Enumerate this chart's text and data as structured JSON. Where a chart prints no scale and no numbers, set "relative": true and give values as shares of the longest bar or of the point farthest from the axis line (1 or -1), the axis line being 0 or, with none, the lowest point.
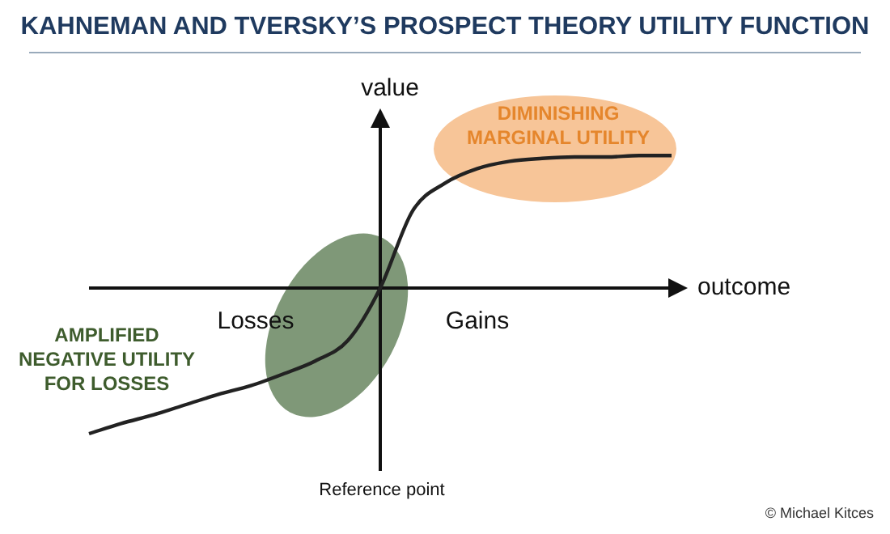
{
  "chart_data": {
    "type": "line",
    "title": "KAHNEMAN AND TVERSKY’S PROSPECT THEORY UTILITY FUNCTION",
    "xlabel": "outcome",
    "ylabel": "value",
    "relative": true,
    "marker": "none",
    "color": "#222222",
    "categories": [
      null,
      null,
      null,
      null,
      null,
      null,
      null,
      null,
      null,
      null,
      null,
      null,
      null,
      null,
      null,
      null,
      null,
      null,
      null
    ],
    "values": [
      -1,
      -0.93,
      -0.87,
      -0.8,
      -0.73,
      -0.67,
      -0.59,
      -0.5,
      -0.36,
      0,
      0.53,
      0.72,
      0.82,
      0.87,
      0.89,
      0.9,
      0.9,
      0.91,
      0.91
    ],
    "annotations": [
      "DIMINISHING MARGINAL UTILITY",
      "AMPLIFIED NEGATIVE UTILITY FOR LOSSES",
      "Losses",
      "Gains",
      "Reference point",
      "© Michael Kitces"
    ]
  }
}
